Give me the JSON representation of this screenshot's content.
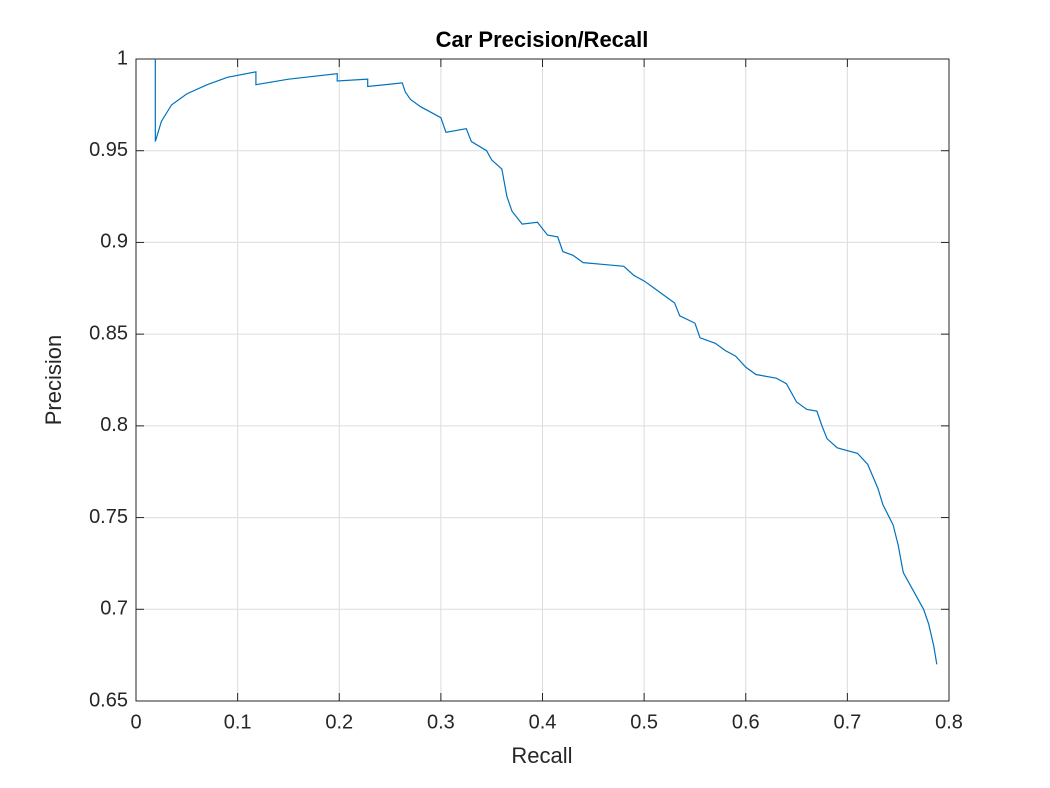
{
  "chart_data": {
    "type": "line",
    "title": "Car Precision/Recall",
    "x_label": "Recall",
    "y_label": "Precision",
    "x": [
      0.019,
      0.019,
      0.025,
      0.035,
      0.05,
      0.07,
      0.09,
      0.118,
      0.118,
      0.15,
      0.198,
      0.198,
      0.228,
      0.228,
      0.262,
      0.265,
      0.27,
      0.28,
      0.29,
      0.3,
      0.305,
      0.325,
      0.33,
      0.345,
      0.35,
      0.36,
      0.365,
      0.37,
      0.38,
      0.395,
      0.405,
      0.415,
      0.42,
      0.43,
      0.44,
      0.46,
      0.48,
      0.49,
      0.5,
      0.51,
      0.52,
      0.53,
      0.535,
      0.55,
      0.555,
      0.57,
      0.58,
      0.59,
      0.6,
      0.61,
      0.63,
      0.64,
      0.645,
      0.65,
      0.66,
      0.67,
      0.675,
      0.68,
      0.69,
      0.71,
      0.72,
      0.73,
      0.735,
      0.745,
      0.75,
      0.755,
      0.765,
      0.775,
      0.78,
      0.785,
      0.788
    ],
    "series": [
      {
        "name": "Car",
        "color": "#0072bd",
        "values": [
          1.0,
          0.955,
          0.966,
          0.975,
          0.981,
          0.986,
          0.99,
          0.993,
          0.986,
          0.989,
          0.992,
          0.988,
          0.989,
          0.985,
          0.987,
          0.982,
          0.978,
          0.974,
          0.971,
          0.968,
          0.96,
          0.962,
          0.955,
          0.95,
          0.945,
          0.94,
          0.925,
          0.917,
          0.91,
          0.911,
          0.904,
          0.903,
          0.895,
          0.893,
          0.889,
          0.888,
          0.887,
          0.882,
          0.879,
          0.875,
          0.871,
          0.867,
          0.86,
          0.856,
          0.848,
          0.845,
          0.841,
          0.838,
          0.832,
          0.828,
          0.826,
          0.823,
          0.818,
          0.813,
          0.809,
          0.808,
          0.8,
          0.793,
          0.788,
          0.785,
          0.779,
          0.766,
          0.757,
          0.746,
          0.735,
          0.72,
          0.71,
          0.7,
          0.692,
          0.68,
          0.67
        ]
      }
    ],
    "xlim": [
      0,
      0.8
    ],
    "xticks": [
      0,
      0.1,
      0.2,
      0.3,
      0.4,
      0.5,
      0.6,
      0.7,
      0.8
    ],
    "ylim": [
      0.65,
      1
    ],
    "yticks": [
      0.65,
      0.7,
      0.75,
      0.8,
      0.85,
      0.9,
      0.95,
      1
    ],
    "grid": true
  }
}
